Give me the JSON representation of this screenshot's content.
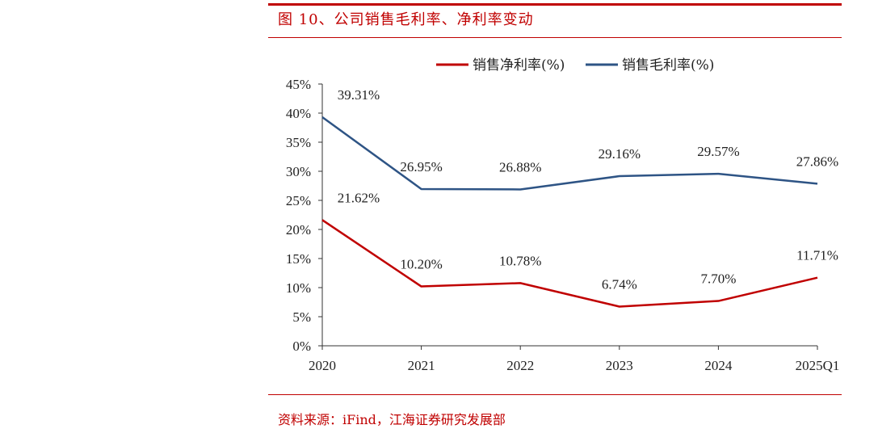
{
  "figure": {
    "title": "图 10、公司销售毛利率、净利率变动",
    "source": "资料来源：iFind，江海证券研究发展部"
  },
  "chart_data": {
    "type": "line",
    "categories": [
      "2020",
      "2021",
      "2022",
      "2023",
      "2024",
      "2025Q1"
    ],
    "ylim": [
      0,
      45
    ],
    "yticks": [
      "0%",
      "5%",
      "10%",
      "15%",
      "20%",
      "25%",
      "30%",
      "35%",
      "40%",
      "45%"
    ],
    "legend_position": "top",
    "grid": false,
    "series": [
      {
        "name": "销售净利率(%)",
        "color": "#c00000",
        "values": [
          21.62,
          10.2,
          10.78,
          6.74,
          7.7,
          11.71
        ],
        "labels": [
          "21.62%",
          "10.20%",
          "10.78%",
          "6.74%",
          "7.70%",
          "11.71%"
        ]
      },
      {
        "name": "销售毛利率(%)",
        "color": "#2e5485",
        "values": [
          39.31,
          26.95,
          26.88,
          29.16,
          29.57,
          27.86
        ],
        "labels": [
          "39.31%",
          "26.95%",
          "26.88%",
          "29.16%",
          "29.57%",
          "27.86%"
        ]
      }
    ]
  }
}
